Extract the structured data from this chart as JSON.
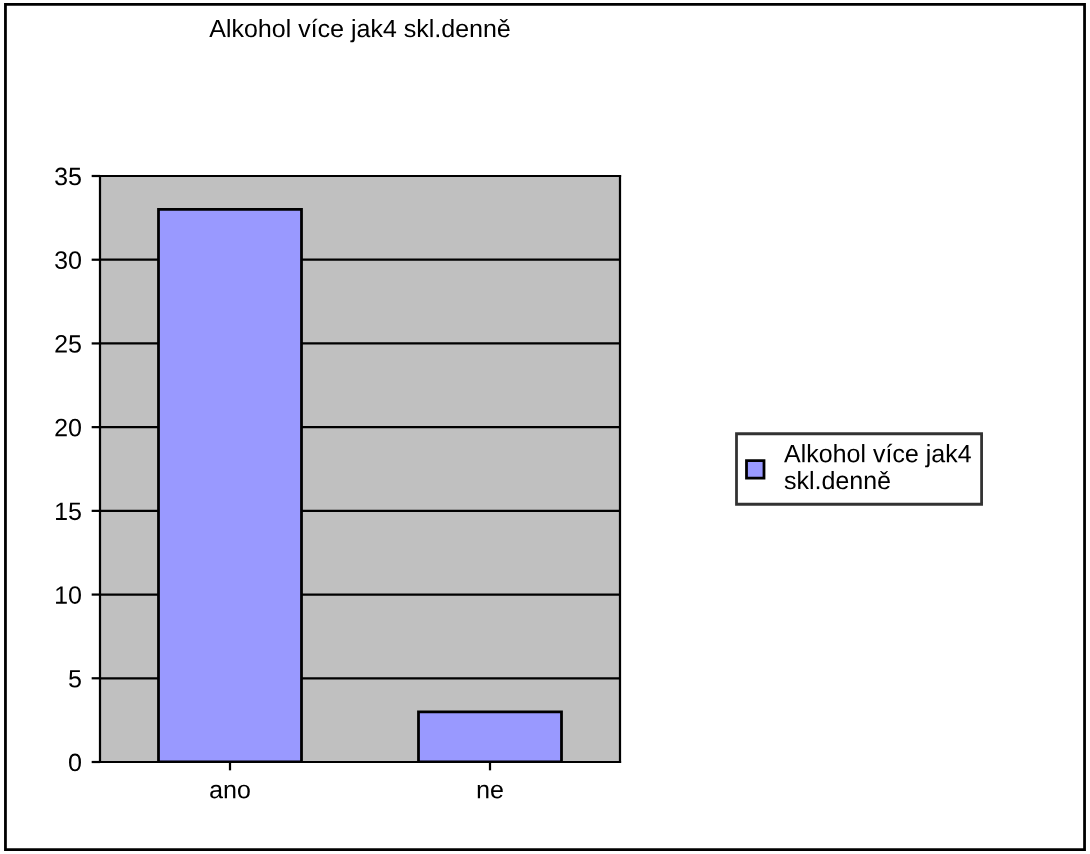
{
  "chart_data": {
    "type": "bar",
    "title": "Alkohol více jak4 skl.denně",
    "categories": [
      "ano",
      "ne"
    ],
    "series": [
      {
        "name": "Alkohol více jak4 skl.denně",
        "color": "#9999ff",
        "values": [
          33,
          3
        ]
      }
    ],
    "ylim": [
      0,
      35
    ],
    "yticks": [
      0,
      5,
      10,
      15,
      20,
      25,
      30,
      35
    ],
    "grid": "y",
    "legend": "right"
  }
}
